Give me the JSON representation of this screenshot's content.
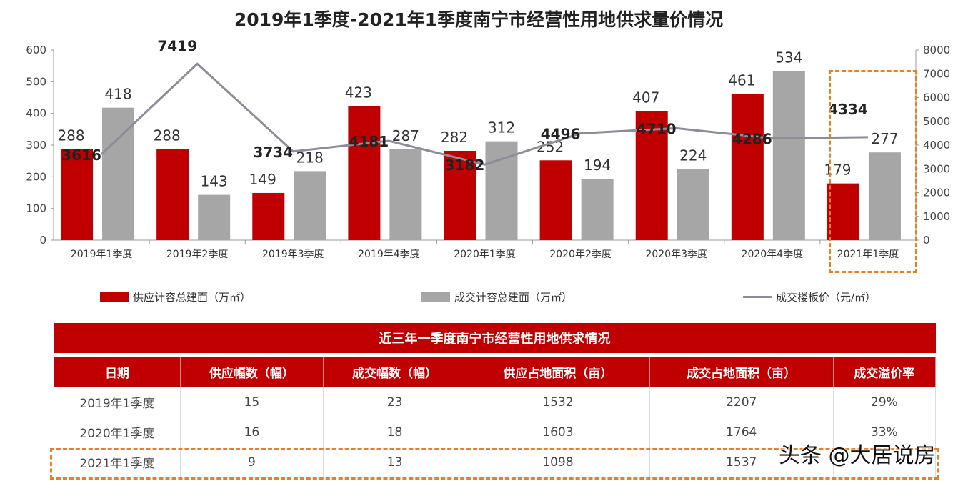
{
  "chart_data": {
    "type": "bar+line",
    "title": "2019年1季度-2021年1季度南宁市经营性用地供求量价情况",
    "categories": [
      "2019年1季度",
      "2019年2季度",
      "2019年3季度",
      "2019年4季度",
      "2020年1季度",
      "2020年2季度",
      "2020年3季度",
      "2020年4季度",
      "2021年1季度"
    ],
    "series": [
      {
        "name": "供应计容总建面（万㎡）",
        "type": "bar",
        "axis": "left",
        "color": "#c00000",
        "values": [
          288,
          288,
          149,
          423,
          282,
          252,
          407,
          461,
          179
        ]
      },
      {
        "name": "成交计容总建面（万㎡）",
        "type": "bar",
        "axis": "left",
        "color": "#a6a6a6",
        "values": [
          418,
          143,
          218,
          287,
          312,
          194,
          224,
          534,
          277
        ]
      },
      {
        "name": "成交楼板价（元/㎡）",
        "type": "line",
        "axis": "right",
        "color": "#8c8c9a",
        "values": [
          3616,
          7419,
          3734,
          4181,
          3182,
          4496,
          4710,
          4286,
          4334
        ]
      }
    ],
    "y_left": {
      "range": [
        0,
        600
      ],
      "ticks": [
        0,
        100,
        200,
        300,
        400,
        500,
        600
      ]
    },
    "y_right": {
      "range": [
        0,
        8000
      ],
      "ticks": [
        0,
        1000,
        2000,
        3000,
        4000,
        5000,
        6000,
        7000,
        8000
      ]
    },
    "legend_position": "bottom",
    "highlight": "2021年1季度",
    "highlight_color": "#ee7d22"
  },
  "table": {
    "caption": "近三年一季度南宁市经营性用地供求情况",
    "headers": [
      "日期",
      "供应幅数（幅）",
      "成交幅数（幅）",
      "供应占地面积（亩）",
      "成交占地面积（亩）",
      "成交溢价率"
    ],
    "rows": [
      [
        "2019年1季度",
        "15",
        "23",
        "1532",
        "2207",
        "29%"
      ],
      [
        "2020年1季度",
        "16",
        "18",
        "1603",
        "1764",
        "33%"
      ],
      [
        "2021年1季度",
        "9",
        "13",
        "1098",
        "1537",
        ""
      ]
    ]
  },
  "watermark": "头条 @大居说房"
}
